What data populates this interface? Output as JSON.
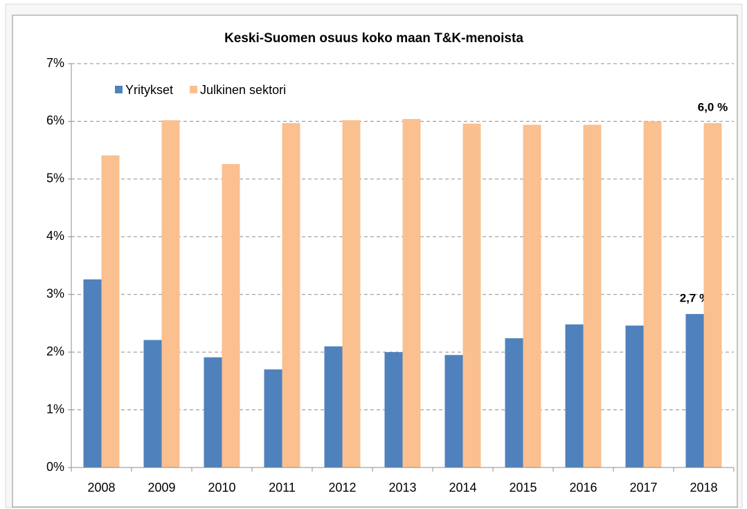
{
  "chart_data": {
    "type": "bar",
    "title": "Keski-Suomen osuus koko maan T&K-menoista",
    "categories": [
      "2008",
      "2009",
      "2010",
      "2011",
      "2012",
      "2013",
      "2014",
      "2015",
      "2016",
      "2017",
      "2018"
    ],
    "series": [
      {
        "name": "Yritykset",
        "color": "#4f81bd",
        "values": [
          3.26,
          2.21,
          1.91,
          1.7,
          2.1,
          2.0,
          1.95,
          2.24,
          2.48,
          2.46,
          2.66
        ],
        "value_labels": [
          null,
          null,
          null,
          null,
          null,
          null,
          null,
          null,
          null,
          null,
          "2,7 %"
        ]
      },
      {
        "name": "Julkinen sektori",
        "color": "#fac090",
        "values": [
          5.41,
          6.02,
          5.26,
          5.97,
          6.02,
          6.04,
          5.96,
          5.94,
          5.94,
          6.0,
          5.97
        ],
        "value_labels": [
          null,
          null,
          null,
          null,
          null,
          null,
          null,
          null,
          null,
          null,
          "6,0 %"
        ]
      }
    ],
    "ylim": [
      0,
      7
    ],
    "yticks": [
      {
        "value": 0,
        "label": "0%"
      },
      {
        "value": 1,
        "label": "1%"
      },
      {
        "value": 2,
        "label": "2%"
      },
      {
        "value": 3,
        "label": "3%"
      },
      {
        "value": 4,
        "label": "4%"
      },
      {
        "value": 5,
        "label": "5%"
      },
      {
        "value": 6,
        "label": "6%"
      },
      {
        "value": 7,
        "label": "7%"
      }
    ],
    "grid": true,
    "legend": "top-left"
  }
}
